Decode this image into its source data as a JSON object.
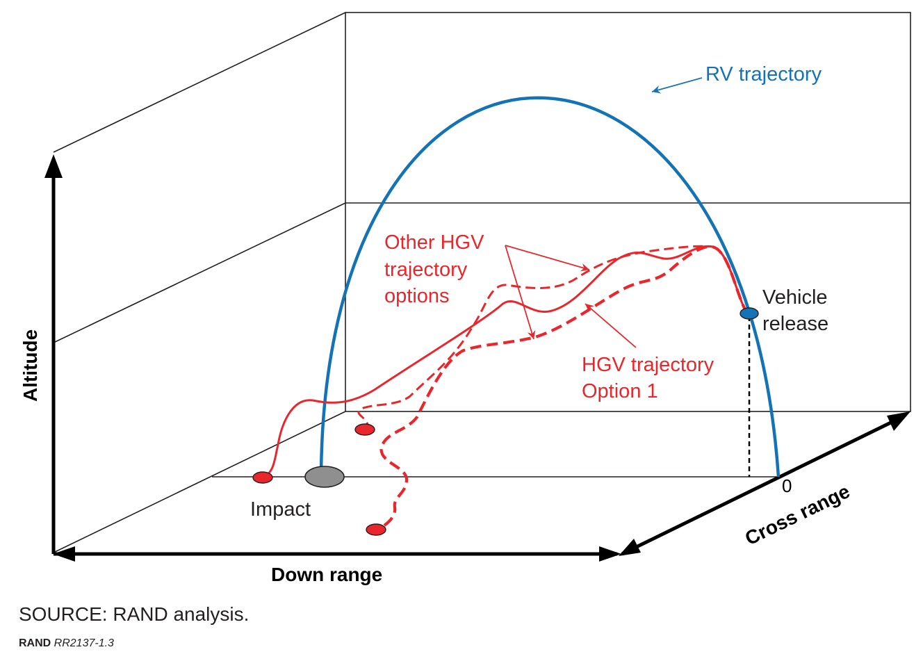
{
  "diagram": {
    "axes": {
      "altitude": "Altitude",
      "down_range": "Down range",
      "cross_range": "Cross range",
      "cross_zero": "0"
    },
    "labels": {
      "rv_trajectory": "RV trajectory",
      "other_hgv_line1": "Other HGV",
      "other_hgv_line2": "trajectory",
      "other_hgv_line3": "options",
      "hgv_option_line1": "HGV trajectory",
      "hgv_option_line2": "Option 1",
      "vehicle_line1": "Vehicle",
      "vehicle_line2": "release",
      "impact": "Impact"
    },
    "colors": {
      "rv": "#1473b5",
      "hgv": "#e8262b",
      "frame": "#231f20",
      "impact_marker": "#8f8f8f"
    }
  },
  "footer": {
    "source": "SOURCE: RAND analysis.",
    "credit_org": "RAND",
    "credit_id": "RR2137-1.3"
  }
}
